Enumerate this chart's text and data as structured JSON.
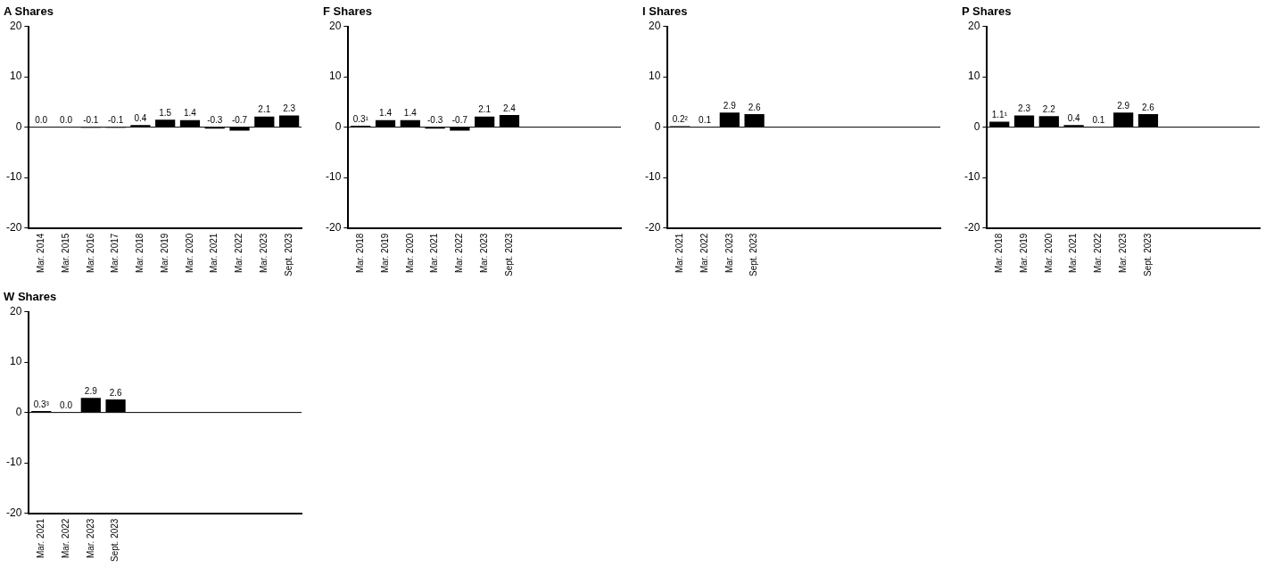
{
  "chart_data": [
    {
      "type": "bar",
      "title": "A Shares",
      "categories": [
        "Mar. 2014",
        "Mar. 2015",
        "Mar. 2016",
        "Mar. 2017",
        "Mar. 2018",
        "Mar. 2019",
        "Mar. 2020",
        "Mar. 2021",
        "Mar. 2022",
        "Mar. 2023",
        "Sept. 2023"
      ],
      "values": [
        0.0,
        0.0,
        -0.1,
        -0.1,
        0.4,
        1.5,
        1.4,
        -0.3,
        -0.7,
        2.1,
        2.3
      ],
      "value_labels": [
        "0.0",
        "0.0",
        "-0.1",
        "-0.1",
        "0.4",
        "1.5",
        "1.4",
        "-0.3",
        "-0.7",
        "2.1",
        "2.3"
      ],
      "color": "#000000",
      "ylim": [
        -20,
        20
      ],
      "yticks": [
        -20,
        -10,
        0,
        10,
        20
      ],
      "grid": false,
      "ref_lines": [
        {
          "axis": "y",
          "value": 0
        }
      ]
    },
    {
      "type": "bar",
      "title": "F Shares",
      "categories": [
        "Mar. 2018",
        "Mar. 2019",
        "Mar. 2020",
        "Mar. 2021",
        "Mar. 2022",
        "Mar. 2023",
        "Sept. 2023",
        null,
        null,
        null,
        null
      ],
      "values": [
        0.3,
        1.4,
        1.4,
        -0.3,
        -0.7,
        2.1,
        2.4,
        null,
        null,
        null,
        null
      ],
      "value_labels": [
        "0.3¹",
        "1.4",
        "1.4",
        "-0.3",
        "-0.7",
        "2.1",
        "2.4",
        null,
        null,
        null,
        null
      ],
      "color": "#000000",
      "ylim": [
        -20,
        20
      ],
      "yticks": [
        -20,
        -10,
        0,
        10,
        20
      ],
      "grid": false,
      "ref_lines": [
        {
          "axis": "y",
          "value": 0
        }
      ]
    },
    {
      "type": "bar",
      "title": "I Shares",
      "categories": [
        "Mar. 2021",
        "Mar. 2022",
        "Mar. 2023",
        "Sept. 2023",
        null,
        null,
        null,
        null,
        null,
        null,
        null
      ],
      "values": [
        0.2,
        0.1,
        2.9,
        2.6,
        null,
        null,
        null,
        null,
        null,
        null,
        null
      ],
      "value_labels": [
        "0.2²",
        "0.1",
        "2.9",
        "2.6",
        null,
        null,
        null,
        null,
        null,
        null,
        null
      ],
      "color": "#000000",
      "ylim": [
        -20,
        20
      ],
      "yticks": [
        -20,
        -10,
        0,
        10,
        20
      ],
      "grid": false,
      "ref_lines": [
        {
          "axis": "y",
          "value": 0
        }
      ]
    },
    {
      "type": "bar",
      "title": "P Shares",
      "categories": [
        "Mar. 2018",
        "Mar. 2019",
        "Mar. 2020",
        "Mar. 2021",
        "Mar. 2022",
        "Mar. 2023",
        "Sept. 2023",
        null,
        null,
        null,
        null
      ],
      "values": [
        1.1,
        2.3,
        2.2,
        0.4,
        0.1,
        2.9,
        2.6,
        null,
        null,
        null,
        null
      ],
      "value_labels": [
        "1.1¹",
        "2.3",
        "2.2",
        "0.4",
        "0.1",
        "2.9",
        "2.6",
        null,
        null,
        null,
        null
      ],
      "color": "#000000",
      "ylim": [
        -20,
        20
      ],
      "yticks": [
        -20,
        -10,
        0,
        10,
        20
      ],
      "grid": false,
      "ref_lines": [
        {
          "axis": "y",
          "value": 0
        }
      ]
    },
    {
      "type": "bar",
      "title": "W Shares",
      "categories": [
        "Mar. 2021",
        "Mar. 2022",
        "Mar. 2023",
        "Sept. 2023",
        null,
        null,
        null,
        null,
        null,
        null,
        null
      ],
      "values": [
        0.3,
        0.0,
        2.9,
        2.6,
        null,
        null,
        null,
        null,
        null,
        null,
        null
      ],
      "value_labels": [
        "0.3³",
        "0.0",
        "2.9",
        "2.6",
        null,
        null,
        null,
        null,
        null,
        null,
        null
      ],
      "color": "#000000",
      "ylim": [
        -20,
        20
      ],
      "yticks": [
        -20,
        -10,
        0,
        10,
        20
      ],
      "grid": false,
      "ref_lines": [
        {
          "axis": "y",
          "value": 0
        }
      ]
    }
  ]
}
